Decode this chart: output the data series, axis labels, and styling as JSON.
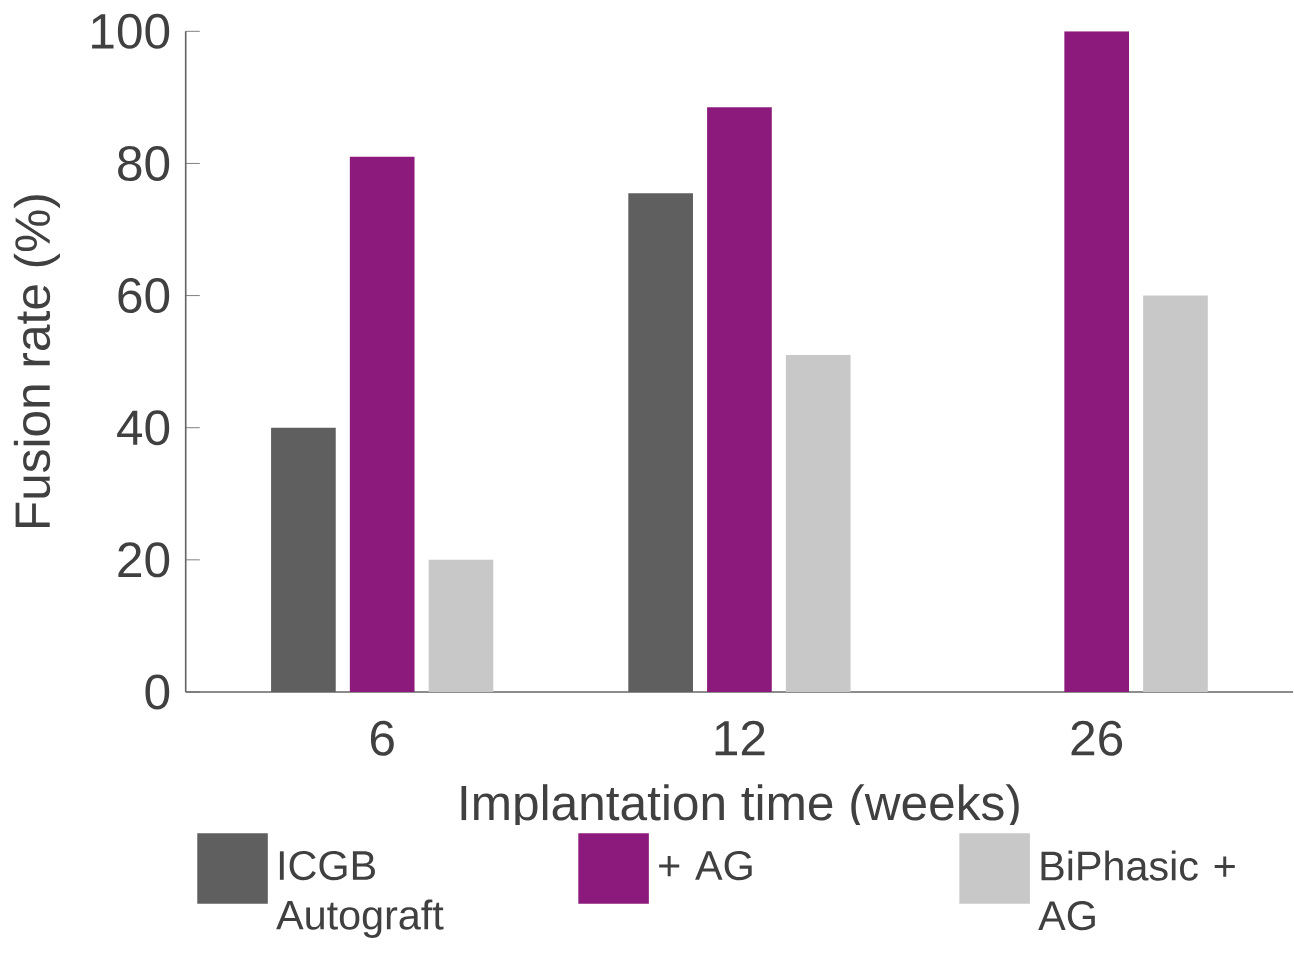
{
  "chart_data": {
    "type": "bar",
    "xlabel": "Implantation time (weeks)",
    "ylabel": "Fusion rate (%)",
    "categories": [
      "6",
      "12",
      "26"
    ],
    "series": [
      {
        "name": "ICGB Autograft",
        "color": "#5f5f5f",
        "values": [
          40,
          75.5,
          null
        ]
      },
      {
        "name": "+ AG",
        "color": "#8c1a7c",
        "values": [
          81,
          88.5,
          100
        ]
      },
      {
        "name": "BiPhasic + AG",
        "color": "#c8c8c8",
        "values": [
          20,
          51,
          60
        ]
      }
    ],
    "ylim": [
      0,
      100
    ],
    "yticks": [
      0,
      20,
      40,
      60,
      80,
      100
    ],
    "grid": false,
    "legend": "bottom"
  }
}
